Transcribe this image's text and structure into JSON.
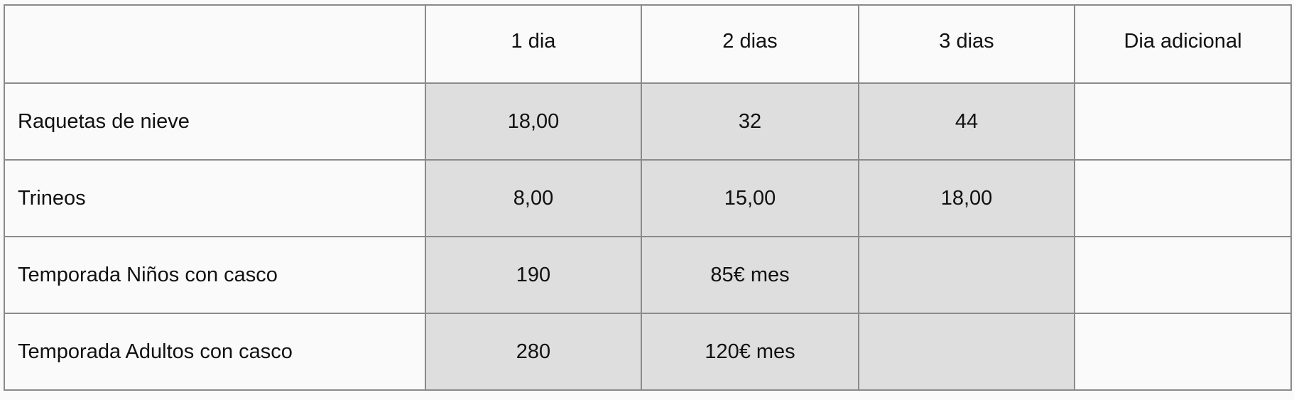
{
  "table": {
    "headers": [
      "",
      "1 dia",
      "2 dias",
      "3 dias",
      "Dia adicional"
    ],
    "rows": [
      {
        "label": "Raquetas de nieve",
        "cells": [
          "18,00",
          "32",
          "44",
          ""
        ]
      },
      {
        "label": "Trineos",
        "cells": [
          "8,00",
          "15,00",
          "18,00",
          ""
        ]
      },
      {
        "label": "Temporada Niños con casco",
        "cells": [
          "190",
          "85€ mes",
          "",
          ""
        ]
      },
      {
        "label": "Temporada Adultos con casco",
        "cells": [
          "280",
          "120€ mes",
          "",
          ""
        ]
      }
    ]
  },
  "colors": {
    "shaded_cell": "#dedede",
    "border": "#8a8a8a"
  }
}
